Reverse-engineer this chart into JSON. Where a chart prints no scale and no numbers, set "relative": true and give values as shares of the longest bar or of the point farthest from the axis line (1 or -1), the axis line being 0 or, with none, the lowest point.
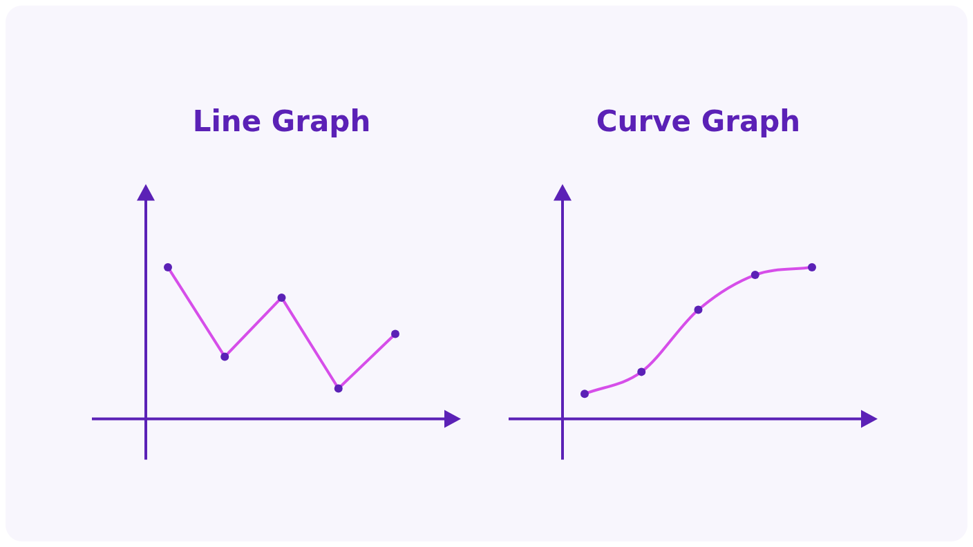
{
  "chart_data": [
    {
      "type": "line",
      "title": "Line Graph",
      "relative": true,
      "categories": [
        null,
        null,
        null,
        null,
        null
      ],
      "grid": false,
      "legend": false,
      "marker": "circle",
      "series": [
        {
          "color": "#d64ee9",
          "values": [
            1,
            0.41,
            0.8,
            0.2,
            0.56
          ]
        }
      ]
    },
    {
      "type": "line",
      "title": "Curve Graph",
      "relative": true,
      "categories": [
        null,
        null,
        null,
        null,
        null
      ],
      "grid": false,
      "legend": false,
      "marker": "circle",
      "series": [
        {
          "color": "#d64ee9",
          "values": [
            0.165,
            0.31,
            0.72,
            0.95,
            1
          ]
        }
      ]
    }
  ]
}
